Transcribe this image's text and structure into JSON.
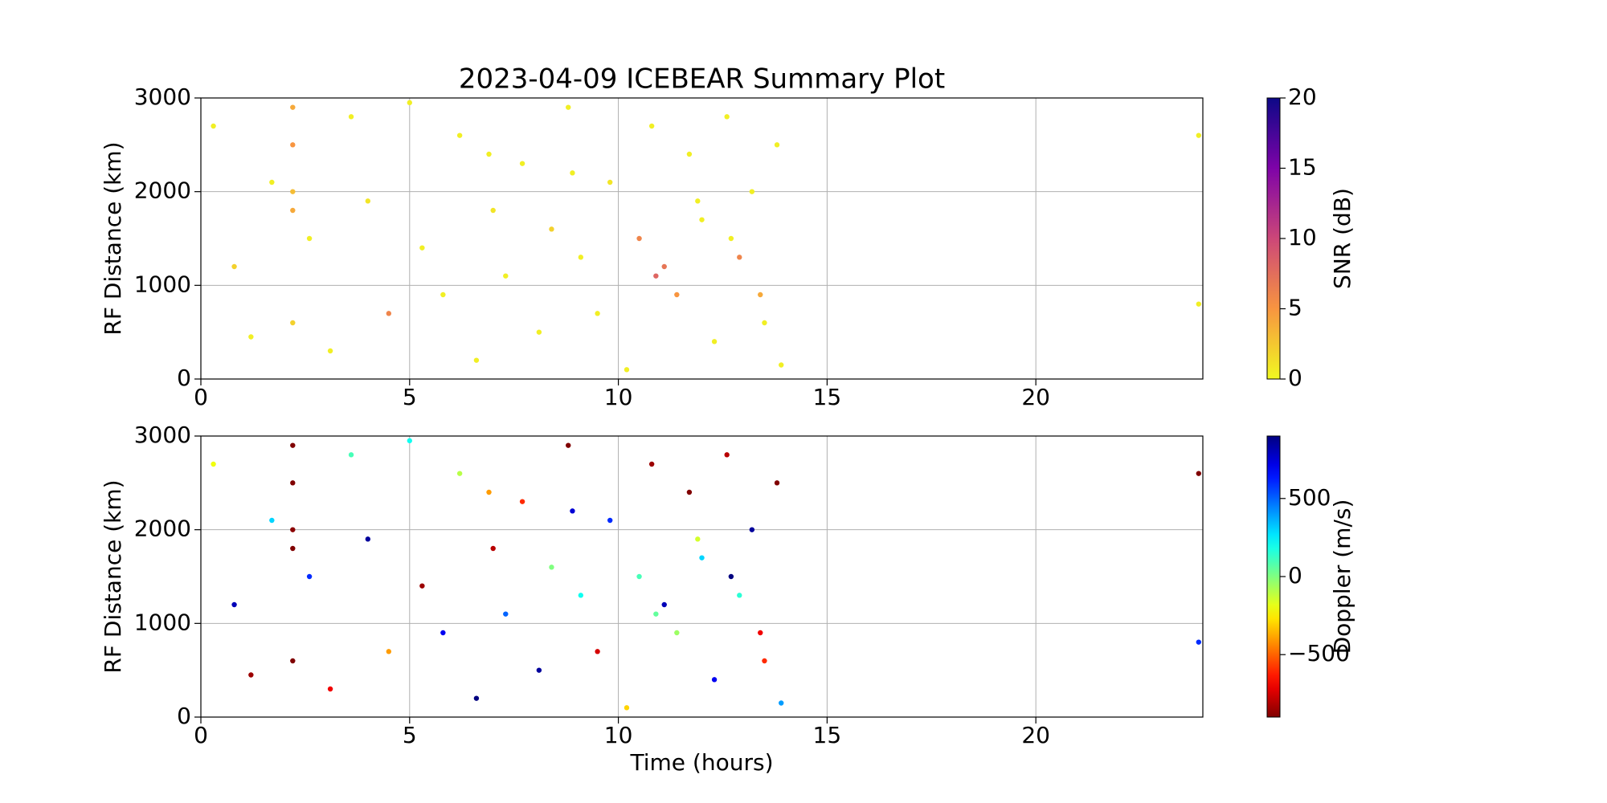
{
  "chart_data": [
    {
      "type": "scatter",
      "title": "2023-04-09 ICEBEAR Summary Plot",
      "ylabel": "RF Distance (km)",
      "xlim": [
        0,
        24
      ],
      "xticks": [
        0,
        5,
        10,
        15,
        20
      ],
      "ylim": [
        0,
        3000
      ],
      "yticks": [
        0,
        1000,
        2000,
        3000
      ],
      "grid": true,
      "x": [
        0.3,
        0.8,
        1.2,
        1.7,
        2.2,
        2.2,
        2.2,
        2.2,
        2.2,
        2.6,
        3.1,
        3.6,
        4.0,
        4.5,
        5.0,
        5.3,
        5.8,
        6.2,
        6.6,
        7.0,
        7.3,
        7.7,
        8.1,
        8.4,
        8.8,
        9.1,
        9.5,
        9.8,
        10.2,
        10.5,
        10.8,
        11.1,
        11.4,
        11.7,
        12.0,
        12.3,
        12.6,
        12.9,
        13.2,
        13.5,
        13.8,
        13.9,
        6.9,
        8.9,
        10.9,
        11.9,
        12.7,
        13.4,
        23.9,
        23.9
      ],
      "values": [
        2700,
        1200,
        450,
        2100,
        2900,
        2500,
        2000,
        1800,
        600,
        1500,
        300,
        2800,
        1900,
        700,
        2950,
        1400,
        900,
        2600,
        200,
        1800,
        1100,
        2300,
        500,
        1600,
        2900,
        1300,
        700,
        2100,
        100,
        1500,
        2700,
        1200,
        900,
        2400,
        1700,
        400,
        2800,
        1300,
        2000,
        600,
        2500,
        150,
        2400,
        2200,
        1100,
        1900,
        1500,
        900,
        2600,
        800
      ],
      "color_values": [
        0.5,
        2,
        0.5,
        0.5,
        4,
        5,
        3,
        4,
        2,
        0.5,
        0.5,
        0.5,
        1,
        6,
        0.5,
        0.5,
        0.5,
        0.5,
        0.5,
        1,
        0.5,
        0.5,
        0.5,
        2,
        0.5,
        0.5,
        0.5,
        1,
        0.5,
        6,
        0.5,
        7,
        5,
        0.5,
        0.5,
        0.5,
        0.5,
        6,
        0.5,
        0.5,
        0.5,
        0.5,
        0.5,
        0.5,
        8,
        0.5,
        0.5,
        4,
        0.5,
        0.5
      ],
      "colorbar": {
        "label": "SNR (dB)",
        "colormap": "plasma_r",
        "lim": [
          0,
          20
        ],
        "ticks": [
          0,
          5,
          10,
          15,
          20
        ]
      }
    },
    {
      "type": "scatter",
      "xlabel": "Time (hours)",
      "ylabel": "RF Distance (km)",
      "xlim": [
        0,
        24
      ],
      "xticks": [
        0,
        5,
        10,
        15,
        20
      ],
      "ylim": [
        0,
        3000
      ],
      "yticks": [
        0,
        1000,
        2000,
        3000
      ],
      "grid": true,
      "x": [
        0.3,
        0.8,
        1.2,
        1.7,
        2.2,
        2.2,
        2.2,
        2.2,
        2.2,
        2.6,
        3.1,
        3.6,
        4.0,
        4.5,
        5.0,
        5.3,
        5.8,
        6.2,
        6.6,
        7.0,
        7.3,
        7.7,
        8.1,
        8.4,
        8.8,
        9.1,
        9.5,
        9.8,
        10.2,
        10.5,
        10.8,
        11.1,
        11.4,
        11.7,
        12.0,
        12.3,
        12.6,
        12.9,
        13.2,
        13.5,
        13.8,
        13.9,
        6.9,
        8.9,
        10.9,
        11.9,
        12.7,
        13.4,
        23.9,
        23.9
      ],
      "values": [
        2700,
        1200,
        450,
        2100,
        2900,
        2500,
        2000,
        1800,
        600,
        1500,
        300,
        2800,
        1900,
        700,
        2950,
        1400,
        900,
        2600,
        200,
        1800,
        1100,
        2300,
        500,
        1600,
        2900,
        1300,
        700,
        2100,
        100,
        1500,
        2700,
        1200,
        900,
        2400,
        1700,
        400,
        2800,
        1300,
        2000,
        600,
        2500,
        150,
        2400,
        2200,
        1100,
        1900,
        1500,
        900,
        2600,
        800
      ],
      "color_values": [
        -200,
        800,
        -850,
        300,
        -900,
        -900,
        -880,
        -900,
        -900,
        600,
        -700,
        100,
        850,
        -400,
        200,
        -850,
        700,
        -100,
        900,
        -800,
        500,
        -600,
        850,
        0,
        -900,
        200,
        -750,
        600,
        -300,
        100,
        -850,
        800,
        -50,
        -900,
        300,
        700,
        -800,
        150,
        850,
        -600,
        -900,
        400,
        -400,
        750,
        50,
        -150,
        900,
        -700,
        -900,
        600
      ],
      "colorbar": {
        "label": "Doppler (m/s)",
        "colormap": "jet_r",
        "lim": [
          -900,
          900
        ],
        "ticks": [
          {
            "value": -500,
            "label": "−500"
          },
          0,
          500
        ]
      }
    }
  ]
}
